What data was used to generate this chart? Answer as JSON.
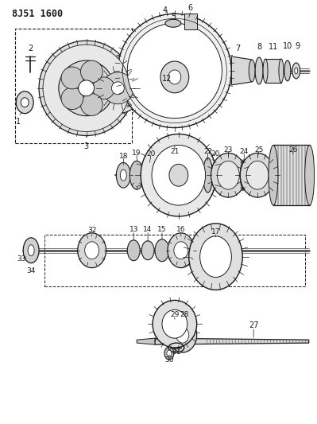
{
  "title": "8J51 1600",
  "bg_color": "#ffffff",
  "fg_color": "#1a1a1a",
  "fig_width": 3.99,
  "fig_height": 5.33,
  "dpi": 100,
  "xmin": 0,
  "xmax": 399,
  "ymin": 0,
  "ymax": 533
}
